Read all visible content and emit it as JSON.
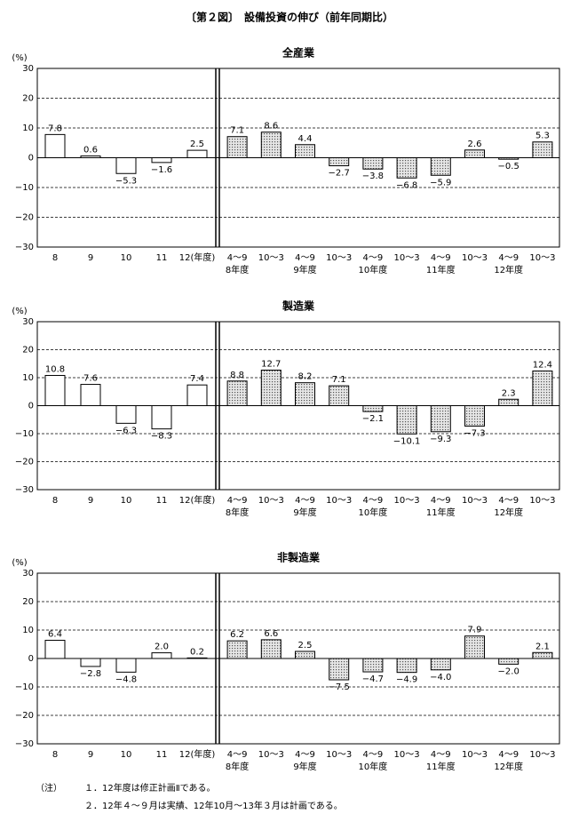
{
  "figure_title": "〔第２図〕　設備投資の伸び（前年同期比）",
  "notes": {
    "label": "（注）",
    "items": [
      "１．12年度は修正計画Ⅱである。",
      "２．12年４～９月は実績、12年10月～13年３月は計画である。"
    ]
  },
  "chart_data": [
    {
      "type": "bar",
      "title": "全産業",
      "y_label": "(%)",
      "categories": [
        "8",
        "9",
        "10",
        "11",
        "12(年度)",
        "4～9",
        "10～3",
        "4～9",
        "10～3",
        "4～9",
        "10～3",
        "4～9",
        "10～3",
        "4～9",
        "10～3"
      ],
      "group_labels": [
        "8年度",
        "9年度",
        "10年度",
        "11年度",
        "12年度"
      ],
      "values": [
        7.8,
        0.6,
        -5.3,
        -1.6,
        2.5,
        7.1,
        8.6,
        4.4,
        -2.7,
        -3.8,
        -6.8,
        -5.9,
        2.6,
        -0.5,
        5.3
      ],
      "value_labels": [
        "7.8",
        "0.6",
        "−5.3",
        "−1.6",
        "2.5",
        "7.1",
        "8.6",
        "4.4",
        "−2.7",
        "−3.8",
        "−6.8",
        "−5.9",
        "2.6",
        "−0.5",
        "5.3"
      ],
      "colors": [
        "#ffffff",
        "#ffffff",
        "#ffffff",
        "#ffffff",
        "#ffffff",
        "url(#dots)",
        "url(#dots)",
        "url(#dots)",
        "url(#dots)",
        "url(#dots)",
        "url(#dots)",
        "url(#dots)",
        "url(#dots)",
        "url(#dots)",
        "url(#dots)"
      ],
      "ylim": [
        -30,
        30
      ],
      "yticks": [
        {
          "value": -30,
          "label": "−30"
        },
        {
          "value": -20,
          "label": "−20"
        },
        {
          "value": -10,
          "label": "−10"
        },
        0,
        10,
        20,
        30
      ],
      "grid": true
    },
    {
      "type": "bar",
      "title": "製造業",
      "y_label": "(%)",
      "categories": [
        "8",
        "9",
        "10",
        "11",
        "12(年度)",
        "4～9",
        "10～3",
        "4～9",
        "10～3",
        "4～9",
        "10～3",
        "4～9",
        "10～3",
        "4～9",
        "10～3"
      ],
      "group_labels": [
        "8年度",
        "9年度",
        "10年度",
        "11年度",
        "12年度"
      ],
      "values": [
        10.8,
        7.6,
        -6.3,
        -8.3,
        7.4,
        8.8,
        12.7,
        8.2,
        7.1,
        -2.1,
        -10.1,
        -9.3,
        -7.3,
        2.3,
        12.4
      ],
      "value_labels": [
        "10.8",
        "7.6",
        "−6.3",
        "−8.3",
        "7.4",
        "8.8",
        "12.7",
        "8.2",
        "7.1",
        "−2.1",
        "−10.1",
        "−9.3",
        "−7.3",
        "2.3",
        "12.4"
      ],
      "colors": [
        "#ffffff",
        "#ffffff",
        "#ffffff",
        "#ffffff",
        "#ffffff",
        "url(#dots)",
        "url(#dots)",
        "url(#dots)",
        "url(#dots)",
        "url(#dots)",
        "url(#dots)",
        "url(#dots)",
        "url(#dots)",
        "url(#dots)",
        "url(#dots)"
      ],
      "ylim": [
        -30,
        30
      ],
      "yticks": [
        {
          "value": -30,
          "label": "−30"
        },
        {
          "value": -20,
          "label": "−20"
        },
        {
          "value": -10,
          "label": "−10"
        },
        0,
        10,
        20,
        30
      ],
      "grid": true
    },
    {
      "type": "bar",
      "title": "非製造業",
      "y_label": "(%)",
      "categories": [
        "8",
        "9",
        "10",
        "11",
        "12(年度)",
        "4～9",
        "10～3",
        "4～9",
        "10～3",
        "4～9",
        "10～3",
        "4～9",
        "10～3",
        "4～9",
        "10～3"
      ],
      "group_labels": [
        "8年度",
        "9年度",
        "10年度",
        "11年度",
        "12年度"
      ],
      "values": [
        6.4,
        -2.8,
        -4.8,
        2.0,
        0.2,
        6.2,
        6.6,
        2.5,
        -7.5,
        -4.7,
        -4.9,
        -4.0,
        7.9,
        -2.0,
        2.1
      ],
      "value_labels": [
        "6.4",
        "−2.8",
        "−4.8",
        "2.0",
        "0.2",
        "6.2",
        "6.6",
        "2.5",
        "−7.5",
        "−4.7",
        "−4.9",
        "−4.0",
        "7.9",
        "−2.0",
        "2.1"
      ],
      "colors": [
        "#ffffff",
        "#ffffff",
        "#ffffff",
        "#ffffff",
        "#ffffff",
        "url(#dots)",
        "url(#dots)",
        "url(#dots)",
        "url(#dots)",
        "url(#dots)",
        "url(#dots)",
        "url(#dots)",
        "url(#dots)",
        "url(#dots)",
        "url(#dots)"
      ],
      "ylim": [
        -30,
        30
      ],
      "yticks": [
        {
          "value": -30,
          "label": "−30"
        },
        {
          "value": -20,
          "label": "−20"
        },
        {
          "value": -10,
          "label": "−10"
        },
        0,
        10,
        20,
        30
      ],
      "grid": true
    }
  ]
}
